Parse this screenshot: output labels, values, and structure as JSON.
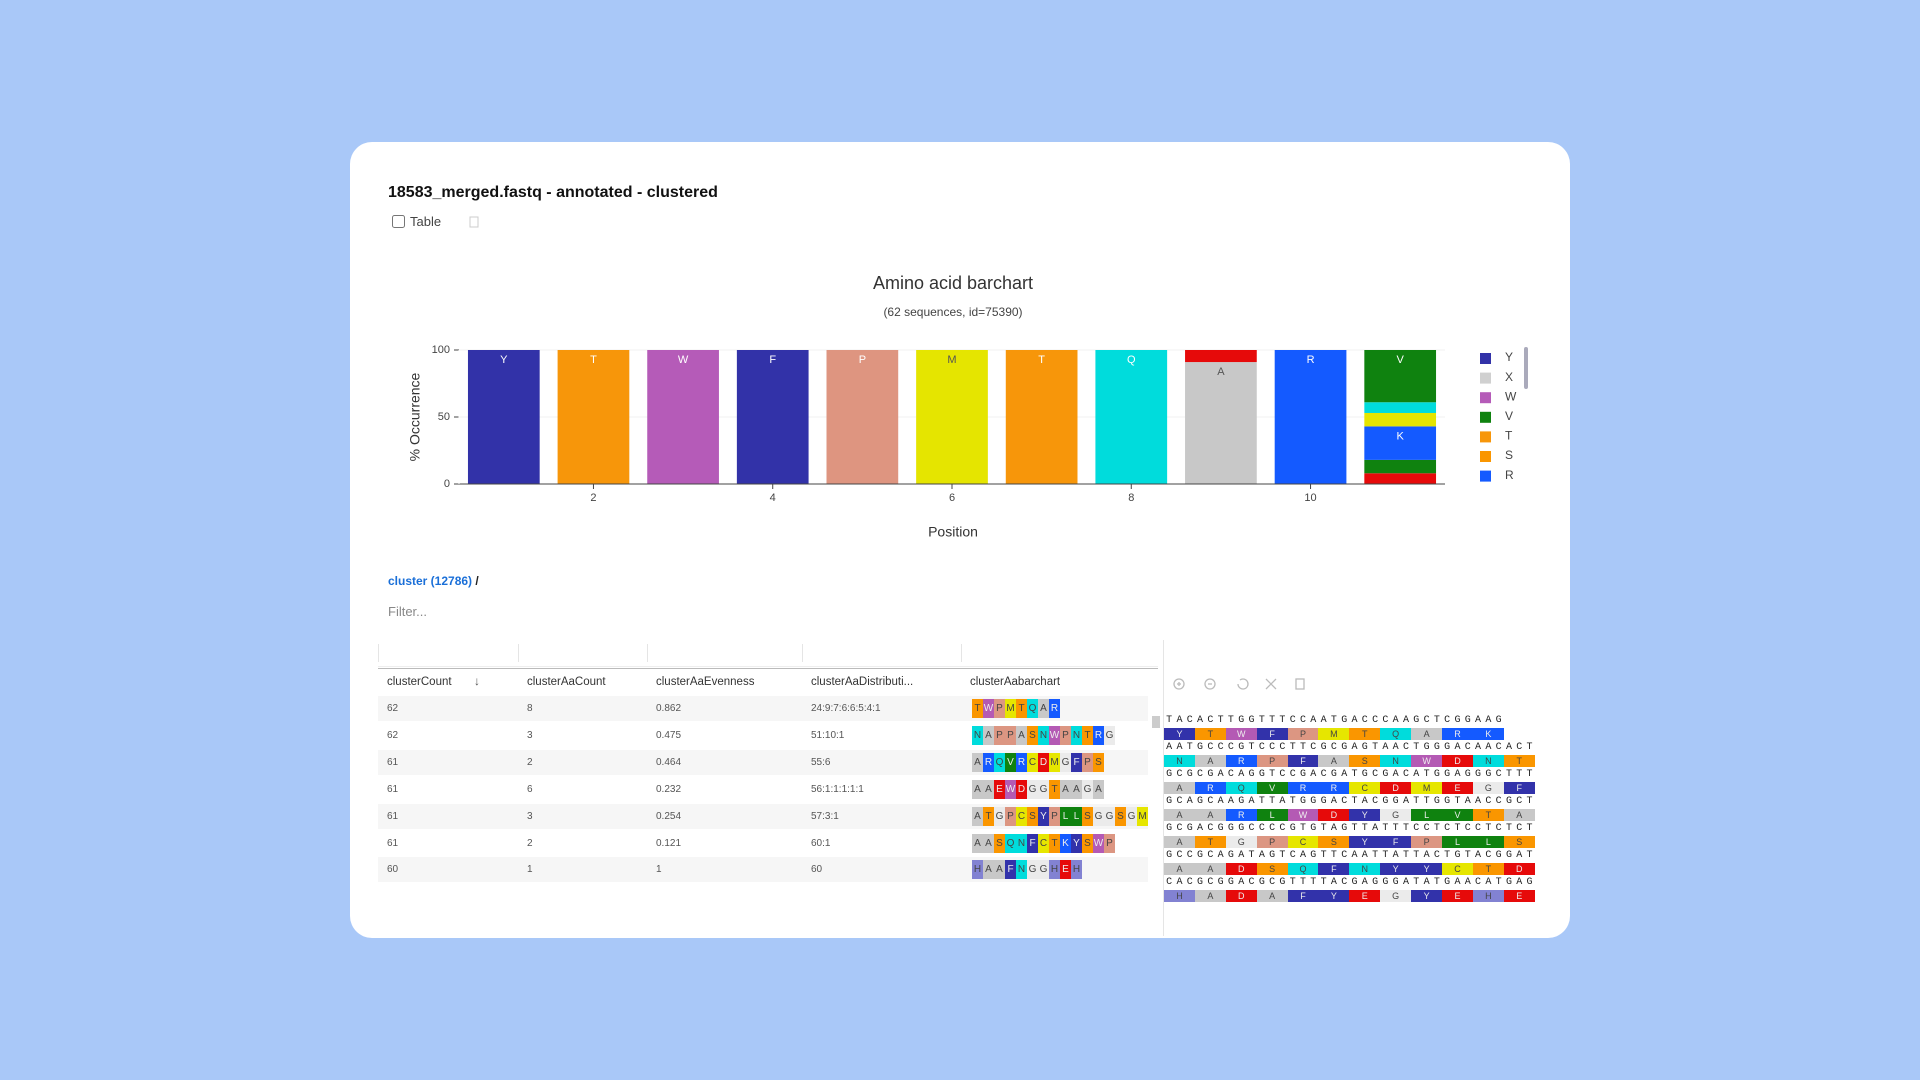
{
  "title": "18583_merged.fastq - annotated - clustered",
  "table_toggle": "Table",
  "chart_data": {
    "type": "bar",
    "stacked": true,
    "title": "Amino acid barchart",
    "subtitle": "(62 sequences, id=75390)",
    "xlabel": "Position",
    "ylabel": "% Occurrence",
    "x": [
      1,
      2,
      3,
      4,
      5,
      6,
      7,
      8,
      9,
      10,
      11
    ],
    "xlim": [
      0.5,
      11.5
    ],
    "xticks": [
      2,
      4,
      6,
      8,
      10
    ],
    "ylim": [
      0,
      100
    ],
    "yticks": [
      0,
      50,
      100
    ],
    "grid": true,
    "bars": [
      {
        "segments": [
          {
            "label": "Y",
            "color": "#3232a8",
            "value": 100
          }
        ]
      },
      {
        "segments": [
          {
            "label": "T",
            "color": "#f7960a",
            "value": 100
          }
        ]
      },
      {
        "segments": [
          {
            "label": "W",
            "color": "#b55bb8",
            "value": 100
          }
        ]
      },
      {
        "segments": [
          {
            "label": "F",
            "color": "#3232a8",
            "value": 100
          }
        ]
      },
      {
        "segments": [
          {
            "label": "P",
            "color": "#de9580",
            "value": 100
          }
        ]
      },
      {
        "segments": [
          {
            "label": "M",
            "color": "#e5e500",
            "value": 100
          }
        ]
      },
      {
        "segments": [
          {
            "label": "T",
            "color": "#f7960a",
            "value": 100
          }
        ]
      },
      {
        "segments": [
          {
            "label": "Q",
            "color": "#00dcdc",
            "value": 100
          }
        ]
      },
      {
        "segments": [
          {
            "label": "A",
            "color": "#c8c8c8",
            "value": 91
          },
          {
            "label": null,
            "color": "#e60a0a",
            "value": 9
          }
        ]
      },
      {
        "segments": [
          {
            "label": "R",
            "color": "#145aff",
            "value": 100
          }
        ]
      },
      {
        "segments": [
          {
            "label": null,
            "color": "#e60a0a",
            "value": 8
          },
          {
            "label": null,
            "color": "#0f820f",
            "value": 10
          },
          {
            "label": "K",
            "color": "#145aff",
            "value": 25
          },
          {
            "label": null,
            "color": "#e5e500",
            "value": 10
          },
          {
            "label": null,
            "color": "#00dcdc",
            "value": 8
          },
          {
            "label": "V",
            "color": "#0f820f",
            "value": 39
          }
        ]
      }
    ],
    "legend": [
      {
        "name": "Y",
        "color": "#3232a8"
      },
      {
        "name": "X",
        "color": "#d0d0d0"
      },
      {
        "name": "W",
        "color": "#b55bb8"
      },
      {
        "name": "V",
        "color": "#0f820f"
      },
      {
        "name": "T",
        "color": "#f7960a"
      },
      {
        "name": "S",
        "color": "#fa9600"
      },
      {
        "name": "R",
        "color": "#145aff"
      }
    ]
  },
  "breadcrumb": {
    "link": "cluster (12786)",
    "separator": "/"
  },
  "filter_placeholder": "Filter...",
  "table": {
    "columns": [
      "clusterCount",
      "clusterAaCount",
      "clusterAaEvenness",
      "clusterAaDistributi...",
      "clusterAabarchart"
    ],
    "rows": [
      [
        62,
        8,
        0.862,
        "24:9:7:6:6:5:4:1",
        "TWPMTQAR"
      ],
      [
        62,
        3,
        0.475,
        "51:10:1",
        "NAPPASNWPNTRG"
      ],
      [
        61,
        2,
        0.464,
        "55:6",
        "ARQVRCDMGFPS"
      ],
      [
        61,
        6,
        0.232,
        "56:1:1:1:1:1",
        "AAEWDGGTAAGA"
      ],
      [
        61,
        3,
        0.254,
        "57:3:1",
        "ATGPCSYPLLSGGSGM"
      ],
      [
        61,
        2,
        0.121,
        "60:1",
        "AASQNFCTKYSWP"
      ],
      [
        60,
        1,
        1,
        "60",
        "HAAFNGGHEH"
      ]
    ]
  },
  "aa_colors": {
    "A": "#c8c8c8",
    "R": "#145aff",
    "N": "#00dcdc",
    "D": "#e60a0a",
    "C": "#e6e600",
    "Q": "#00dcdc",
    "E": "#e60a0a",
    "G": "#ebebeb",
    "H": "#8282d2",
    "L": "#0f820f",
    "K": "#145aff",
    "M": "#e6e600",
    "F": "#3232aa",
    "P": "#dc9682",
    "S": "#fa9600",
    "T": "#fa9600",
    "W": "#b45ab4",
    "Y": "#3232aa",
    "V": "#0f820f"
  },
  "sequences": [
    {
      "dna": "TACACTTGGTTTCCAATGACCCAAGCTCGGAAG",
      "aa": "YTWFPMTQARK"
    },
    {
      "dna": "AATGCCCGTCCCTTCGCGAGTAACTGGGACAACACT",
      "aa": "NARPFASNWDNT"
    },
    {
      "dna": "GCGCGACAGGTCCGACGATGCGACATGGAGGGCTTT",
      "aa": "ARQVRRCDMEGF"
    },
    {
      "dna": "GCAGCAAGATTATGGGACTACGGATTGGTAACCGCT",
      "aa": "AARLWDYGLVTA"
    },
    {
      "dna": "GCGACGGGCCCCGTGTAGTTATTTCCTCTCCTCTCT",
      "aa": "ATGPCSYFPLLS"
    },
    {
      "dna": "GCCGCAGATAGTCAGTTCAATTATTACTGTACGGAT",
      "aa": "AADSQFNYYCTD"
    },
    {
      "dna": "CACGCGGACGCGTTTTACGAGGGATATGAACATGAG",
      "aa": "HADAFYEGYEHE"
    }
  ]
}
